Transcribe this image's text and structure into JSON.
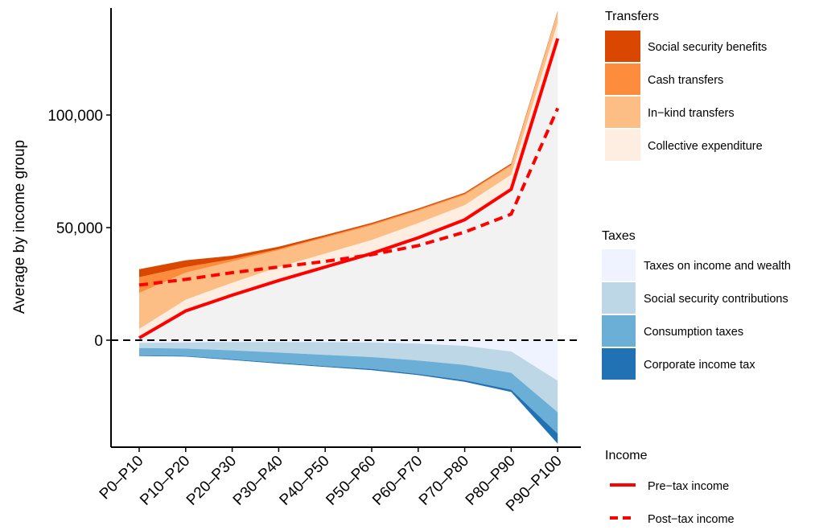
{
  "chart_data": {
    "type": "area",
    "ylabel": "Average by income group",
    "xlabel": "",
    "categories": [
      "P0–P10",
      "P10–P20",
      "P20–P30",
      "P30–P40",
      "P40–P50",
      "P50–P60",
      "P60–P70",
      "P70–P80",
      "P80–P90",
      "P90–P100"
    ],
    "ylim": [
      -46000,
      147000
    ],
    "yticks": [
      0,
      50000,
      100000
    ],
    "ytick_labels": [
      "0",
      "50,000",
      "100,000"
    ],
    "zero_line": "dashed",
    "transfer_layers": [
      {
        "name": "Collective expenditure",
        "color": "#fdeee1",
        "values": [
          4000,
          5000,
          5500,
          6000,
          6000,
          6000,
          6500,
          6500,
          6500,
          7000
        ]
      },
      {
        "name": "In-kind transfers",
        "color": "#fdbe85",
        "values": [
          16000,
          12000,
          9500,
          7500,
          7000,
          6500,
          5500,
          4500,
          4000,
          4500
        ]
      },
      {
        "name": "Cash transfers",
        "color": "#fd8d3c",
        "values": [
          7000,
          2500,
          1000,
          500,
          500,
          500,
          500,
          500,
          500,
          500
        ]
      },
      {
        "name": "Social security benefits",
        "color": "#d94701",
        "values": [
          3500,
          3000,
          1500,
          1000,
          700,
          600,
          500,
          500,
          500,
          300
        ]
      }
    ],
    "tax_layers": [
      {
        "name": "Taxes on income and wealth",
        "color": "#eff3ff",
        "values": [
          -1200,
          -1000,
          -800,
          -800,
          -900,
          -1000,
          -1500,
          -2500,
          -5000,
          -18000
        ]
      },
      {
        "name": "Social security contributions",
        "color": "#bdd7e7",
        "values": [
          -2300,
          -2700,
          -3700,
          -4700,
          -5600,
          -6500,
          -7500,
          -8500,
          -9500,
          -14000
        ]
      },
      {
        "name": "Consumption taxes",
        "color": "#6baed6",
        "values": [
          -3200,
          -3300,
          -4000,
          -4500,
          -5000,
          -5300,
          -6000,
          -6800,
          -7500,
          -9500
        ]
      },
      {
        "name": "Corporate income tax",
        "color": "#2171b5",
        "values": [
          -300,
          -300,
          -300,
          -400,
          -400,
          -500,
          -500,
          -700,
          -1000,
          -4500
        ]
      }
    ],
    "series": [
      {
        "name": "Pre-tax income",
        "style": "solid",
        "color": "#ff0000",
        "values": [
          1000,
          13000,
          20000,
          26500,
          32500,
          38500,
          45500,
          53500,
          67000,
          134000
        ]
      },
      {
        "name": "Post-tax income",
        "style": "dashed",
        "color": "#ff0000",
        "values": [
          24500,
          27000,
          30000,
          32500,
          35000,
          38000,
          42000,
          48000,
          56000,
          103000
        ]
      }
    ],
    "legends": [
      {
        "title": "Transfers",
        "items": [
          "Social security benefits",
          "Cash transfers",
          "In−kind transfers",
          "Collective expenditure"
        ],
        "colors": [
          "#d94701",
          "#fd8d3c",
          "#fdbe85",
          "#fdeee1"
        ]
      },
      {
        "title": "Taxes",
        "items": [
          "Taxes on income and wealth",
          "Social security contributions",
          "Consumption taxes",
          "Corporate income tax"
        ],
        "colors": [
          "#eff3ff",
          "#bdd7e7",
          "#6baed6",
          "#2171b5"
        ]
      },
      {
        "title": "Income",
        "items": [
          "Pre−tax income",
          "Post−tax income"
        ],
        "styles": [
          "solid",
          "dashed"
        ]
      }
    ],
    "tick_labels_x": [
      "P0–P10",
      "P10–P20",
      "P20–P30",
      "P30–P40",
      "P40–P50",
      "P50–P60",
      "P60–P70",
      "P70–P80",
      "P80–P90",
      "P90–P100"
    ],
    "gap_fill_color": "#f2f2f2",
    "legend_placement": "right"
  }
}
